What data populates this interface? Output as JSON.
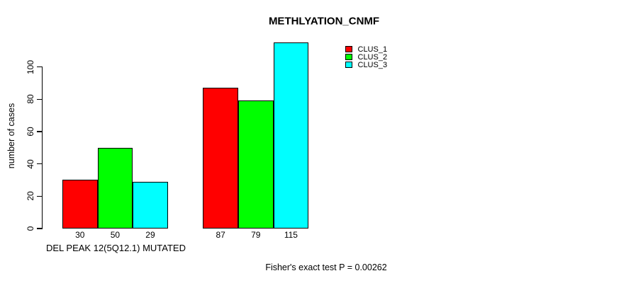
{
  "chart_data": {
    "type": "bar",
    "title": "METHLYATION_CNMF",
    "ylabel": "number of cases",
    "xlabel": "DEL PEAK 12(5Q12.1) MUTATED",
    "annotation": "Fisher's exact test P = 0.00262",
    "series": [
      {
        "name": "CLUS_1",
        "color": "#ff0000",
        "values": [
          30,
          87
        ]
      },
      {
        "name": "CLUS_2",
        "color": "#00ff00",
        "values": [
          50,
          79
        ]
      },
      {
        "name": "CLUS_3",
        "color": "#00ffff",
        "values": [
          29,
          115
        ]
      }
    ],
    "n_groups": 2,
    "yticks": [
      0,
      20,
      40,
      60,
      80,
      100
    ],
    "ylim": [
      0,
      117
    ],
    "grid": false,
    "legend_position": "top-right",
    "show_bar_value_labels": true,
    "bar_border_color": "#000000",
    "background_color": "#ffffff"
  }
}
